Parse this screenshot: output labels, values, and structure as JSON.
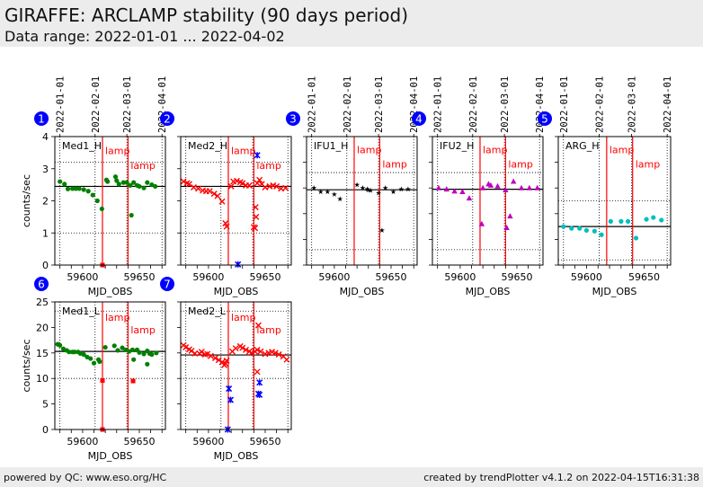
{
  "header": {
    "title": "GIRAFFE: ARCLAMP stability (90 days period)",
    "subtitle": "Data range: 2022-01-01 ... 2022-04-02"
  },
  "footer": {
    "left": "powered by QC: www.eso.org/HC",
    "right": "created by trendPlotter v4.1.2 on 2022-04-15T16:31:38"
  },
  "colors": {
    "lamp_line": "#ff0000",
    "badge": "#0000ff",
    "green": "#008000",
    "red": "#ff0000",
    "blue": "#0000ff",
    "black": "#000000",
    "magenta": "#bf00bf",
    "cyan": "#00bfbf"
  },
  "chart_data": [
    {
      "type": "scatter",
      "badge": "1",
      "label": "Med1_H",
      "ylabel": "counts/sec",
      "xlabel": "MJD_OBS",
      "show_dates": true,
      "show_yticklabels": true,
      "xlim": [
        59575.5,
        59673
      ],
      "ylim": [
        0,
        4
      ],
      "yticks": [
        0,
        1,
        2,
        3,
        4
      ],
      "median": 2.45,
      "hlines": [
        1.0,
        3.2
      ],
      "lamp_lines": [
        {
          "x": 59617.5,
          "label": "lamp",
          "label_y": 3.45
        },
        {
          "x": 59640,
          "label": "lamp",
          "label_y": 3.0
        }
      ],
      "series": [
        {
          "name": "main",
          "marker": "circle",
          "color": "green",
          "x": [
            59580,
            59584,
            59587,
            59591,
            59594,
            59597,
            59601,
            59605,
            59609,
            59613,
            59617,
            59621,
            59622,
            59629,
            59630,
            59632,
            59636,
            59639,
            59642,
            59645,
            59648,
            59650,
            59654,
            59657,
            59661,
            59664
          ],
          "y": [
            2.6,
            2.52,
            2.37,
            2.38,
            2.38,
            2.38,
            2.35,
            2.3,
            2.18,
            2.0,
            1.75,
            2.65,
            2.6,
            2.75,
            2.63,
            2.52,
            2.57,
            2.57,
            2.48,
            2.57,
            2.48,
            2.45,
            2.4,
            2.57,
            2.5,
            2.45
          ]
        },
        {
          "name": "outlier",
          "marker": "circle",
          "color": "green",
          "x": [
            59643
          ],
          "y": [
            1.55
          ]
        },
        {
          "name": "zero",
          "marker": "square",
          "color": "red",
          "x": [
            59617.5
          ],
          "y": [
            0.0
          ]
        }
      ]
    },
    {
      "type": "scatter",
      "badge": "2",
      "label": "Med2_H",
      "ylabel": "",
      "xlabel": "MJD_OBS",
      "show_dates": false,
      "show_yticklabels": false,
      "xlim": [
        59575.5,
        59673
      ],
      "ylim": [
        0,
        4
      ],
      "yticks": [
        0,
        1,
        2,
        3,
        4
      ],
      "median": 2.45,
      "hlines": [
        1.0,
        3.2
      ],
      "lamp_lines": [
        {
          "x": 59617.5,
          "label": "lamp",
          "label_y": 3.45
        },
        {
          "x": 59640,
          "label": "lamp",
          "label_y": 3.0
        }
      ],
      "series": [
        {
          "name": "main",
          "marker": "x",
          "color": "red",
          "x": [
            59578,
            59581,
            59583,
            59587,
            59591,
            59595,
            59598,
            59601,
            59605,
            59608,
            59612,
            59615,
            59616,
            59620,
            59622,
            59625,
            59628,
            59630,
            59633,
            59636,
            59640,
            59642,
            59643,
            59645,
            59647,
            59650,
            59654,
            59657,
            59660,
            59664,
            59668
          ],
          "y": [
            2.6,
            2.55,
            2.52,
            2.42,
            2.38,
            2.32,
            2.3,
            2.3,
            2.22,
            2.15,
            1.98,
            1.3,
            1.2,
            2.45,
            2.6,
            2.62,
            2.58,
            2.55,
            2.48,
            2.48,
            1.18,
            1.5,
            2.55,
            2.65,
            2.52,
            2.42,
            2.45,
            2.48,
            2.45,
            2.38,
            2.4
          ]
        },
        {
          "name": "flag",
          "marker": "x",
          "color": "red",
          "x": [
            59641,
            59641.5
          ],
          "y": [
            1.15,
            1.8
          ]
        },
        {
          "name": "blue",
          "marker": "asterisk",
          "color": "blue",
          "x": [
            59643,
            59626
          ],
          "y": [
            3.42,
            0.02
          ]
        }
      ]
    },
    {
      "type": "scatter",
      "badge": "3",
      "label": "IFU1_H",
      "ylabel": "",
      "xlabel": "MJD_OBS",
      "show_dates": true,
      "show_yticklabels": false,
      "xlim": [
        59575.5,
        59673
      ],
      "ylim": [
        0,
        5
      ],
      "yticks": [
        0,
        1,
        2,
        3,
        4,
        5
      ],
      "median": 2.93,
      "hlines": [
        0.6,
        3.6
      ],
      "lamp_lines": [
        {
          "x": 59617.5,
          "label": "lamp",
          "label_y": 4.35
        },
        {
          "x": 59640,
          "label": "lamp",
          "label_y": 3.8
        }
      ],
      "series": [
        {
          "name": "main",
          "marker": "star",
          "color": "black",
          "x": [
            59582,
            59588,
            59594,
            59600,
            59605,
            59620,
            59625,
            59629,
            59630,
            59632,
            59639,
            59645,
            59652,
            59659,
            59665
          ],
          "y": [
            3.0,
            2.85,
            2.85,
            2.75,
            2.57,
            3.12,
            3.0,
            2.95,
            2.92,
            2.9,
            2.8,
            3.0,
            2.85,
            2.95,
            2.95
          ]
        },
        {
          "name": "outlier",
          "marker": "star",
          "color": "black",
          "x": [
            59642
          ],
          "y": [
            1.35
          ]
        }
      ]
    },
    {
      "type": "scatter",
      "badge": "4",
      "label": "IFU2_H",
      "ylabel": "",
      "xlabel": "MJD_OBS",
      "show_dates": true,
      "show_yticklabels": false,
      "xlim": [
        59575.5,
        59673
      ],
      "ylim": [
        0,
        5
      ],
      "yticks": [
        0,
        1,
        2,
        3,
        4,
        5
      ],
      "median": 2.95,
      "hlines": [
        0.6,
        3.6
      ],
      "lamp_lines": [
        {
          "x": 59617.5,
          "label": "lamp",
          "label_y": 4.35
        },
        {
          "x": 59640,
          "label": "lamp",
          "label_y": 3.8
        }
      ],
      "series": [
        {
          "name": "main",
          "marker": "triangle",
          "color": "magenta",
          "x": [
            59581,
            59588,
            59595,
            59602,
            59608,
            59620,
            59625,
            59627,
            59633,
            59640,
            59647,
            59654,
            59661,
            59668
          ],
          "y": [
            3.0,
            2.95,
            2.87,
            2.85,
            2.6,
            3.0,
            3.15,
            3.1,
            3.07,
            2.92,
            3.25,
            3.0,
            3.0,
            3.0
          ]
        },
        {
          "name": "low",
          "marker": "triangle",
          "color": "magenta",
          "x": [
            59619,
            59641,
            59644
          ],
          "y": [
            1.6,
            1.45,
            1.9
          ]
        }
      ]
    },
    {
      "type": "scatter",
      "badge": "5",
      "label": "ARG_H",
      "ylabel": "",
      "xlabel": "MJD_OBS",
      "show_dates": true,
      "show_yticklabels": false,
      "xlim": [
        59575.5,
        59673
      ],
      "ylim": [
        0,
        5
      ],
      "yticks": [
        0,
        1,
        2,
        3,
        4,
        5
      ],
      "median": 1.5,
      "hlines": [
        0.2,
        2.5
      ],
      "lamp_lines": [
        {
          "x": 59617.5,
          "label": "lamp",
          "label_y": 4.35
        },
        {
          "x": 59640,
          "label": "lamp",
          "label_y": 3.8
        }
      ],
      "series": [
        {
          "name": "main",
          "marker": "circle",
          "color": "cyan",
          "x": [
            59580,
            59587,
            59594,
            59600,
            59607,
            59613,
            59621,
            59630,
            59636,
            59643,
            59652,
            59658,
            59665
          ],
          "y": [
            1.5,
            1.43,
            1.43,
            1.35,
            1.32,
            1.18,
            1.7,
            1.7,
            1.7,
            1.05,
            1.78,
            1.85,
            1.75
          ]
        }
      ]
    },
    {
      "type": "scatter",
      "badge": "6",
      "label": "Med1_L",
      "ylabel": "counts/sec",
      "xlabel": "MJD_OBS",
      "show_dates": false,
      "show_yticklabels": true,
      "xlim": [
        59575.5,
        59673
      ],
      "ylim": [
        0,
        25
      ],
      "yticks": [
        0,
        5,
        10,
        15,
        20,
        25
      ],
      "median": 15.3,
      "hlines": [
        10.0,
        23.2
      ],
      "lamp_lines": [
        {
          "x": 59617.5,
          "label": "lamp",
          "label_y": 21.3
        },
        {
          "x": 59640,
          "label": "lamp",
          "label_y": 18.8
        }
      ],
      "series": [
        {
          "name": "main",
          "marker": "circle",
          "color": "green",
          "x": [
            59578,
            59580,
            59583,
            59586,
            59588,
            59591,
            59593,
            59596,
            59598,
            59601,
            59604,
            59607,
            59610,
            59614,
            59615,
            59620,
            59628,
            59631,
            59635,
            59638,
            59641,
            59644,
            59648,
            59650,
            59654,
            59657,
            59659,
            59661,
            59665
          ],
          "y": [
            16.7,
            16.5,
            15.8,
            15.5,
            15.2,
            15.2,
            15.2,
            15.2,
            14.9,
            14.7,
            14.2,
            13.9,
            13.0,
            13.7,
            13.3,
            16.1,
            16.4,
            15.5,
            16.0,
            15.6,
            15.3,
            15.6,
            15.6,
            15.1,
            14.8,
            15.4,
            14.9,
            14.7,
            15.0
          ]
        },
        {
          "name": "outliers",
          "marker": "circle",
          "color": "green",
          "x": [
            59645,
            59657
          ],
          "y": [
            13.7,
            12.8
          ]
        },
        {
          "name": "flag",
          "marker": "square",
          "color": "red",
          "x": [
            59617.5,
            59644.5,
            59617.5
          ],
          "y": [
            9.6,
            9.5,
            0.0
          ]
        }
      ]
    },
    {
      "type": "scatter",
      "badge": "7",
      "label": "Med2_L",
      "ylabel": "",
      "xlabel": "MJD_OBS",
      "show_dates": false,
      "show_yticklabels": false,
      "xlim": [
        59575.5,
        59673
      ],
      "ylim": [
        0,
        25
      ],
      "yticks": [
        0,
        5,
        10,
        15,
        20,
        25
      ],
      "median": 14.6,
      "hlines": [
        10.0,
        23.2
      ],
      "lamp_lines": [
        {
          "x": 59617.5,
          "label": "lamp",
          "label_y": 21.3
        },
        {
          "x": 59640,
          "label": "lamp",
          "label_y": 18.8
        }
      ],
      "series": [
        {
          "name": "main",
          "marker": "x",
          "color": "red",
          "x": [
            59578,
            59580,
            59583,
            59585,
            59588,
            59592,
            59594,
            59597,
            59599,
            59602,
            59606,
            59609,
            59612,
            59614,
            59615,
            59616,
            59621,
            59624,
            59628,
            59630,
            59633,
            59636,
            59638,
            59641,
            59643,
            59646,
            59650,
            59653,
            59656,
            59659,
            59662,
            59666,
            59669
          ],
          "y": [
            16.5,
            16.1,
            15.7,
            15.4,
            14.9,
            14.9,
            15.2,
            14.7,
            14.8,
            14.4,
            14.0,
            13.6,
            13.2,
            12.6,
            12.9,
            13.5,
            15.3,
            15.9,
            16.3,
            16.0,
            15.6,
            15.3,
            15.0,
            15.3,
            15.6,
            15.3,
            14.8,
            15.0,
            15.2,
            15.0,
            14.7,
            14.3,
            13.7
          ]
        },
        {
          "name": "flag",
          "marker": "x",
          "color": "red",
          "x": [
            59644,
            59643
          ],
          "y": [
            20.4,
            11.3
          ]
        },
        {
          "name": "blue",
          "marker": "asterisk",
          "color": "blue",
          "x": [
            59618,
            59619.5,
            59617,
            59645,
            59644,
            59645
          ],
          "y": [
            8.0,
            5.8,
            0.0,
            9.2,
            7.0,
            6.8
          ]
        }
      ]
    }
  ],
  "date_ticks": {
    "labels": [
      "2022-01-01",
      "2022-02-01",
      "2022-03-01",
      "2022-04-01"
    ],
    "mjd": [
      59580,
      59611,
      59639,
      59670
    ]
  },
  "x_ticks": {
    "labels": [
      "59600",
      "59650"
    ],
    "values": [
      59600,
      59650
    ],
    "minor_step": 10
  }
}
